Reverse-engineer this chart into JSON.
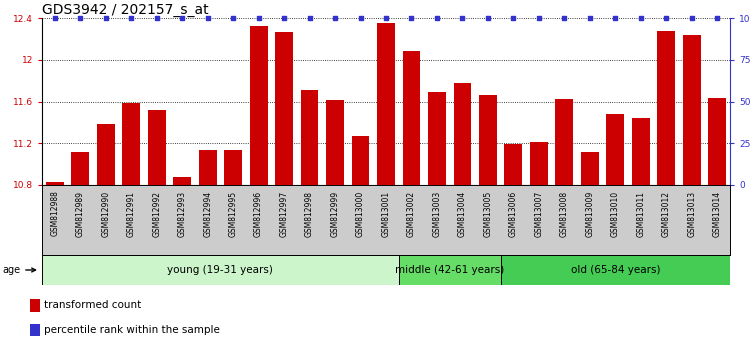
{
  "title": "GDS3942 / 202157_s_at",
  "samples": [
    "GSM812988",
    "GSM812989",
    "GSM812990",
    "GSM812991",
    "GSM812992",
    "GSM812993",
    "GSM812994",
    "GSM812995",
    "GSM812996",
    "GSM812997",
    "GSM812998",
    "GSM812999",
    "GSM813000",
    "GSM813001",
    "GSM813002",
    "GSM813003",
    "GSM813004",
    "GSM813005",
    "GSM813006",
    "GSM813007",
    "GSM813008",
    "GSM813009",
    "GSM813010",
    "GSM813011",
    "GSM813012",
    "GSM813013",
    "GSM813014"
  ],
  "bar_values": [
    10.83,
    11.12,
    11.38,
    11.59,
    11.52,
    10.88,
    11.14,
    11.14,
    12.32,
    12.27,
    11.71,
    11.61,
    11.27,
    12.35,
    12.08,
    11.69,
    11.78,
    11.66,
    11.19,
    11.21,
    11.62,
    11.12,
    11.48,
    11.44,
    12.28,
    12.24,
    11.63
  ],
  "percentile_values": [
    100,
    100,
    100,
    100,
    100,
    100,
    100,
    100,
    100,
    100,
    100,
    100,
    100,
    100,
    100,
    100,
    100,
    100,
    100,
    100,
    100,
    100,
    100,
    100,
    100,
    100,
    100
  ],
  "bar_color": "#cc0000",
  "percentile_color": "#3333cc",
  "ylim_left": [
    10.8,
    12.4
  ],
  "ylim_right": [
    0,
    100
  ],
  "yticks_left": [
    10.8,
    11.2,
    11.6,
    12.0,
    12.4
  ],
  "ytick_labels_left": [
    "10.8",
    "11.2",
    "11.6",
    "12",
    "12.4"
  ],
  "yticks_right": [
    0,
    25,
    50,
    75,
    100
  ],
  "ytick_labels_right": [
    "0",
    "25",
    "50",
    "75",
    "100%"
  ],
  "groups": [
    {
      "label": "young (19-31 years)",
      "start": 0,
      "end": 14,
      "color": "#ccf5cc"
    },
    {
      "label": "middle (42-61 years)",
      "start": 14,
      "end": 18,
      "color": "#66dd66"
    },
    {
      "label": "old (65-84 years)",
      "start": 18,
      "end": 27,
      "color": "#44cc55"
    }
  ],
  "age_label": "age",
  "legend_items": [
    {
      "label": "transformed count",
      "color": "#cc0000"
    },
    {
      "label": "percentile rank within the sample",
      "color": "#3333cc"
    }
  ],
  "title_fontsize": 10,
  "tick_fontsize": 6.5,
  "group_fontsize": 7.5,
  "xtick_bg_color": "#cccccc"
}
